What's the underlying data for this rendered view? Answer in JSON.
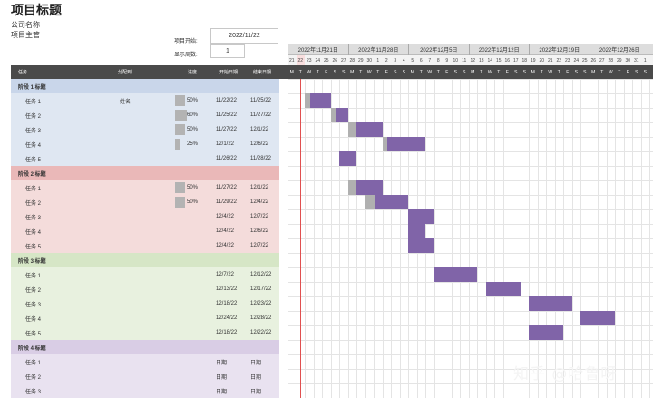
{
  "title": "项目标题",
  "company": "公司名称",
  "manager": "项目主管",
  "controls": {
    "start_label": "项目开始:",
    "start_value": "2022/11/22",
    "week_label": "显示周数:",
    "week_value": "1"
  },
  "columns": {
    "task": "任务",
    "owner": "分配到",
    "progress": "进度",
    "start": "开始日期",
    "end": "结束日期"
  },
  "weeks": [
    "2022年11月21日",
    "2022年11月28日",
    "2022年12月5日",
    "2022年12月12日",
    "2022年12月19日",
    "2022年12月26日"
  ],
  "days": [
    "21",
    "22",
    "23",
    "24",
    "25",
    "26",
    "27",
    "28",
    "29",
    "30",
    "1",
    "2",
    "3",
    "4",
    "5",
    "6",
    "7",
    "8",
    "9",
    "10",
    "11",
    "12",
    "13",
    "14",
    "15",
    "16",
    "17",
    "18",
    "19",
    "20",
    "21",
    "22",
    "23",
    "24",
    "25",
    "26",
    "27",
    "28",
    "29",
    "30",
    "31",
    "1"
  ],
  "weekdays": [
    "M",
    "T",
    "W",
    "T",
    "F",
    "S",
    "S",
    "M",
    "T",
    "W",
    "T",
    "F",
    "S",
    "S",
    "M",
    "T",
    "W",
    "T",
    "F",
    "S",
    "S",
    "M",
    "T",
    "W",
    "T",
    "F",
    "S",
    "S",
    "M",
    "T",
    "W",
    "T",
    "F",
    "S",
    "S",
    "M",
    "T",
    "W",
    "T",
    "F",
    "S",
    "S"
  ],
  "phases": [
    {
      "label": "阶段 1 标题",
      "color": "#c9d6ea",
      "rowcolor": "#dfe7f2",
      "tasks": [
        {
          "name": "任务 1",
          "owner": "姓名",
          "progress": "50%",
          "start": "11/22/22",
          "end": "11/25/22"
        },
        {
          "name": "任务 2",
          "owner": "",
          "progress": "60%",
          "start": "11/25/22",
          "end": "11/27/22"
        },
        {
          "name": "任务 3",
          "owner": "",
          "progress": "50%",
          "start": "11/27/22",
          "end": "12/1/22"
        },
        {
          "name": "任务 4",
          "owner": "",
          "progress": "25%",
          "start": "12/1/22",
          "end": "12/6/22"
        },
        {
          "name": "任务 5",
          "owner": "",
          "progress": "",
          "start": "11/26/22",
          "end": "11/28/22"
        }
      ]
    },
    {
      "label": "阶段 2 标题",
      "color": "#eab8b8",
      "rowcolor": "#f4dcdb",
      "tasks": [
        {
          "name": "任务 1",
          "owner": "",
          "progress": "50%",
          "start": "11/27/22",
          "end": "12/1/22"
        },
        {
          "name": "任务 2",
          "owner": "",
          "progress": "50%",
          "start": "11/29/22",
          "end": "12/4/22"
        },
        {
          "name": "任务 3",
          "owner": "",
          "progress": "",
          "start": "12/4/22",
          "end": "12/7/22"
        },
        {
          "name": "任务 4",
          "owner": "",
          "progress": "",
          "start": "12/4/22",
          "end": "12/6/22"
        },
        {
          "name": "任务 5",
          "owner": "",
          "progress": "",
          "start": "12/4/22",
          "end": "12/7/22"
        }
      ]
    },
    {
      "label": "阶段 3 标题",
      "color": "#d6e6c6",
      "rowcolor": "#e8f1df",
      "tasks": [
        {
          "name": "任务 1",
          "owner": "",
          "progress": "",
          "start": "12/7/22",
          "end": "12/12/22"
        },
        {
          "name": "任务 2",
          "owner": "",
          "progress": "",
          "start": "12/13/22",
          "end": "12/17/22"
        },
        {
          "name": "任务 3",
          "owner": "",
          "progress": "",
          "start": "12/18/22",
          "end": "12/23/22"
        },
        {
          "name": "任务 4",
          "owner": "",
          "progress": "",
          "start": "12/24/22",
          "end": "12/28/22"
        },
        {
          "name": "任务 5",
          "owner": "",
          "progress": "",
          "start": "12/18/22",
          "end": "12/22/22"
        }
      ]
    },
    {
      "label": "阶段 4 标题",
      "color": "#d9cde5",
      "rowcolor": "#e9e2f0",
      "tasks": [
        {
          "name": "任务 1",
          "owner": "",
          "progress": "",
          "start": "日期",
          "end": "日期"
        },
        {
          "name": "任务 2",
          "owner": "",
          "progress": "",
          "start": "日期",
          "end": "日期"
        },
        {
          "name": "任务 3",
          "owner": "",
          "progress": "",
          "start": "日期",
          "end": "日期"
        }
      ]
    }
  ],
  "colors": {
    "task_bar": "#8064a8",
    "progress_bar": "#b0b0b0",
    "header": "#4a4a4a",
    "today_line": "#e05050"
  },
  "watermark": "知乎 @哈鲁呀"
}
